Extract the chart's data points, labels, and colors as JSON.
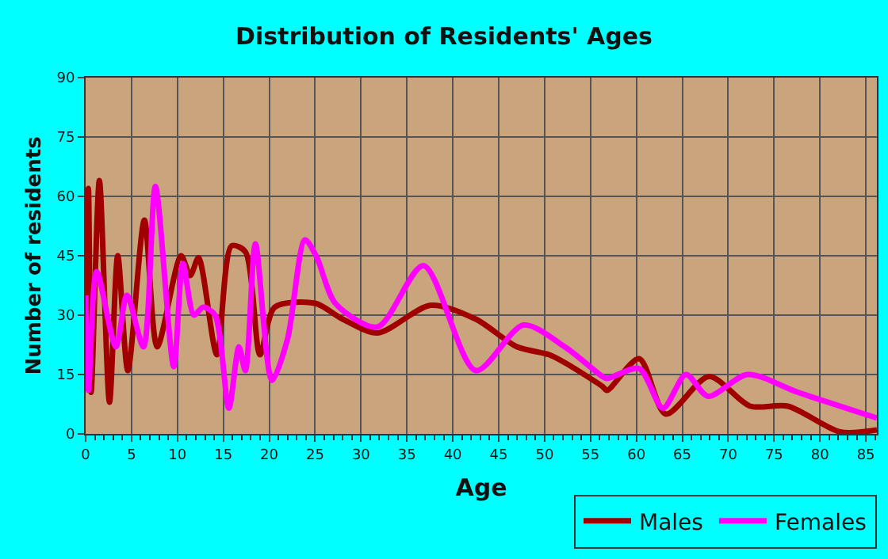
{
  "chart_data": {
    "type": "line",
    "title": "Distribution of Residents' Ages",
    "xlabel": "Age",
    "ylabel": "Number of residents",
    "xlim": [
      0,
      86.2
    ],
    "xticks": [
      0,
      5,
      10,
      15,
      20,
      25,
      30,
      35,
      40,
      45,
      50,
      55,
      60,
      65,
      70,
      75,
      80,
      85
    ],
    "ylim": [
      0,
      90
    ],
    "yticks": [
      0,
      15,
      30,
      45,
      60,
      75,
      90
    ],
    "grid": true,
    "legend": "bottom right",
    "marker": "none",
    "line_style": "solid",
    "series": [
      {
        "name": "Males",
        "color": "#a00000",
        "x": [
          0,
          0.3,
          0.6,
          1.5,
          2.6,
          3.5,
          4.6,
          6.4,
          7.8,
          10.4,
          11.4,
          12.3,
          14.3,
          15.9,
          17.4,
          19,
          20.6,
          25,
          28,
          31.8,
          37.6,
          42.5,
          47,
          50.5,
          52.2,
          56.3,
          56.8,
          60.3,
          63.2,
          67.9,
          72.4,
          76.5,
          82.2,
          86.2
        ],
        "values": [
          35,
          62,
          10.5,
          64,
          8,
          45,
          16,
          54,
          22,
          45,
          40,
          44.5,
          20,
          47.5,
          46,
          20,
          32,
          33,
          29,
          25.5,
          32.5,
          29,
          22,
          20,
          18,
          12,
          11,
          19,
          5,
          14.5,
          7,
          7,
          0.5,
          1
        ]
      },
      {
        "name": "Females",
        "color": "#ff00ff",
        "x": [
          0,
          0.3,
          1.2,
          3.3,
          4.5,
          6.3,
          7.6,
          9.6,
          10.6,
          11.8,
          12.8,
          14.1,
          15.6,
          16.7,
          17.4,
          18.5,
          20.3,
          22,
          23.9,
          25.2,
          27.2,
          31.8,
          36.8,
          42.5,
          47.7,
          52.2,
          56.3,
          56.8,
          60.3,
          62.9,
          65.4,
          67.8,
          72.1,
          77.6,
          86.2
        ],
        "values": [
          35,
          11,
          41,
          22,
          35,
          22,
          62.5,
          17,
          43,
          30,
          32,
          30,
          6.5,
          22,
          16,
          48,
          13.5,
          24,
          49,
          44.5,
          33,
          27,
          42.5,
          16,
          27.5,
          22,
          14.5,
          14,
          16.5,
          6.5,
          15,
          9.5,
          15,
          10.5,
          4
        ]
      }
    ]
  }
}
